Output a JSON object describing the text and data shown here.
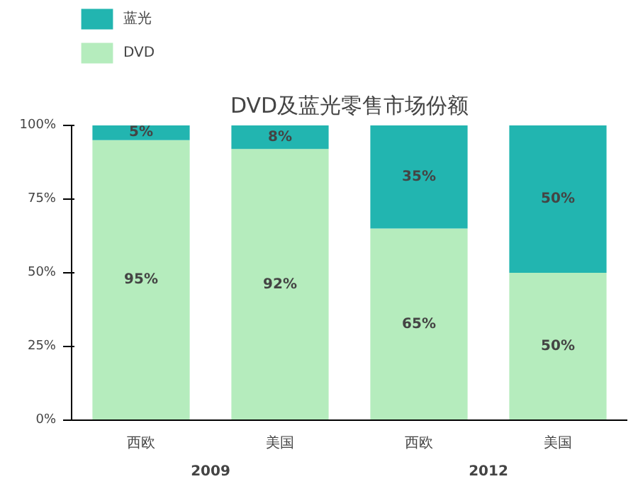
{
  "chart_data": {
    "type": "bar",
    "title": "DVD及蓝光零售市场份额",
    "stacked": true,
    "categories": [
      "西欧",
      "美国",
      "西欧",
      "美国"
    ],
    "series": [
      {
        "name": "DVD",
        "color": "#b5ecbd",
        "values": [
          95,
          92,
          65,
          50
        ],
        "value_labels": [
          "95%",
          "92%",
          "65%",
          "50%"
        ]
      },
      {
        "name": "蓝光",
        "color": "#22b5b0",
        "values": [
          5,
          8,
          35,
          50
        ],
        "value_labels": [
          "5%",
          "8%",
          "35%",
          "50%"
        ]
      }
    ],
    "ylim": [
      0,
      100
    ],
    "yticks": [
      {
        "value": 0,
        "label": "0%"
      },
      {
        "value": 25,
        "label": "25%"
      },
      {
        "value": 50,
        "label": "50%"
      },
      {
        "value": 75,
        "label": "75%"
      },
      {
        "value": 100,
        "label": "100%"
      }
    ],
    "annotations": [
      "2009",
      "2012"
    ],
    "legend": "top left",
    "grid": false
  }
}
